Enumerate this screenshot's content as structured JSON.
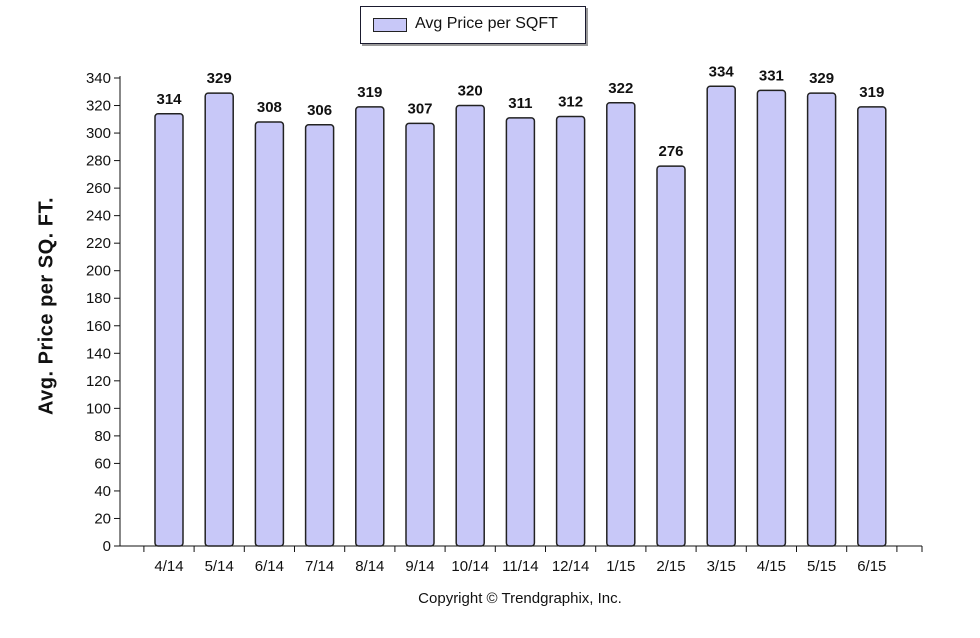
{
  "chart_data": {
    "type": "bar",
    "categories": [
      "4/14",
      "5/14",
      "6/14",
      "7/14",
      "8/14",
      "9/14",
      "10/14",
      "11/14",
      "12/14",
      "1/15",
      "2/15",
      "3/15",
      "4/15",
      "5/15",
      "6/15"
    ],
    "series": [
      {
        "name": "Avg Price per SQFT",
        "values": [
          314,
          329,
          308,
          306,
          319,
          307,
          320,
          311,
          312,
          322,
          276,
          334,
          331,
          329,
          319
        ]
      }
    ],
    "ylabel": "Avg. Price per SQ. FT.",
    "xlabel": "",
    "ylim": [
      0,
      340
    ],
    "yticks": [
      0,
      20,
      40,
      60,
      80,
      100,
      120,
      140,
      160,
      180,
      200,
      220,
      240,
      260,
      280,
      300,
      320,
      340
    ],
    "grid": false,
    "legend_position": "top-center",
    "data_labels": true,
    "bar_color": "#c8c8f8",
    "bar_stroke": "#222222"
  },
  "footer": {
    "copyright": "Copyright © Trendgraphix, Inc."
  }
}
